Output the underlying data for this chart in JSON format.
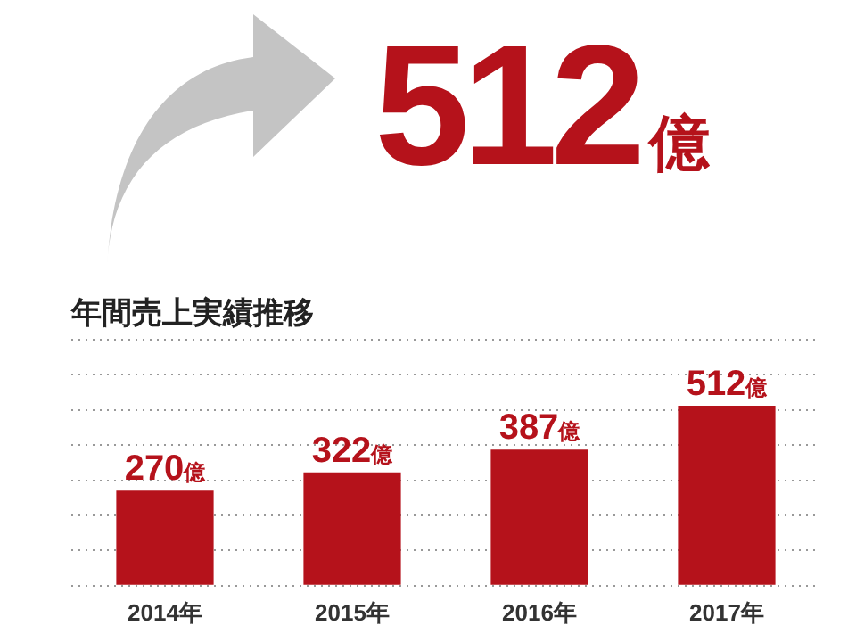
{
  "chart_data": {
    "type": "bar",
    "title": "年間売上実績推移",
    "annotations": [
      "512億"
    ],
    "categories": [
      "2014年",
      "2015年",
      "2016年",
      "2017年"
    ],
    "values": [
      270,
      322,
      387,
      512
    ],
    "value_labels": [
      "270億",
      "322億",
      "387億",
      "512億"
    ],
    "color": "#b5121b",
    "ylim": [
      0,
      700
    ],
    "yticks": [
      {
        "value": 0,
        "label": null
      },
      {
        "value": 100,
        "label": null
      },
      {
        "value": 200,
        "label": null
      },
      {
        "value": 300,
        "label": null
      },
      {
        "value": 400,
        "label": null
      },
      {
        "value": 500,
        "label": null
      },
      {
        "value": 600,
        "label": null
      },
      {
        "value": 700,
        "label": null
      }
    ],
    "grid": "y",
    "tick_labels": "x",
    "legend": false
  }
}
